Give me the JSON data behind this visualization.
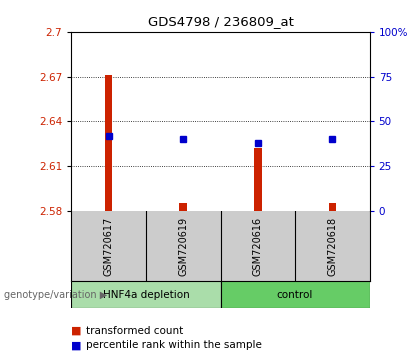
{
  "title": "GDS4798 / 236809_at",
  "samples": [
    "GSM720617",
    "GSM720619",
    "GSM720616",
    "GSM720618"
  ],
  "bar_values": [
    2.671,
    2.585,
    2.622,
    2.585
  ],
  "bar_base": 2.58,
  "percentile_values": [
    42,
    40,
    38,
    40
  ],
  "ylim_left": [
    2.58,
    2.7
  ],
  "ylim_right": [
    0,
    100
  ],
  "yticks_left": [
    2.58,
    2.61,
    2.64,
    2.67,
    2.7
  ],
  "yticks_right": [
    0,
    25,
    50,
    75,
    100
  ],
  "ytick_labels_left": [
    "2.58",
    "2.61",
    "2.64",
    "2.67",
    "2.7"
  ],
  "ytick_labels_right": [
    "0",
    "25",
    "50",
    "75",
    "100%"
  ],
  "bar_color": "#CC2200",
  "dot_color": "#0000CC",
  "group_label": "genotype/variation",
  "legend_items": [
    "transformed count",
    "percentile rank within the sample"
  ],
  "legend_colors": [
    "#CC2200",
    "#0000CC"
  ],
  "group1_label": "HNF4a depletion",
  "group2_label": "control",
  "group1_color": "#aaddaa",
  "group2_color": "#66cc66",
  "sample_bg_color": "#cccccc",
  "fig_bg": "#ffffff"
}
